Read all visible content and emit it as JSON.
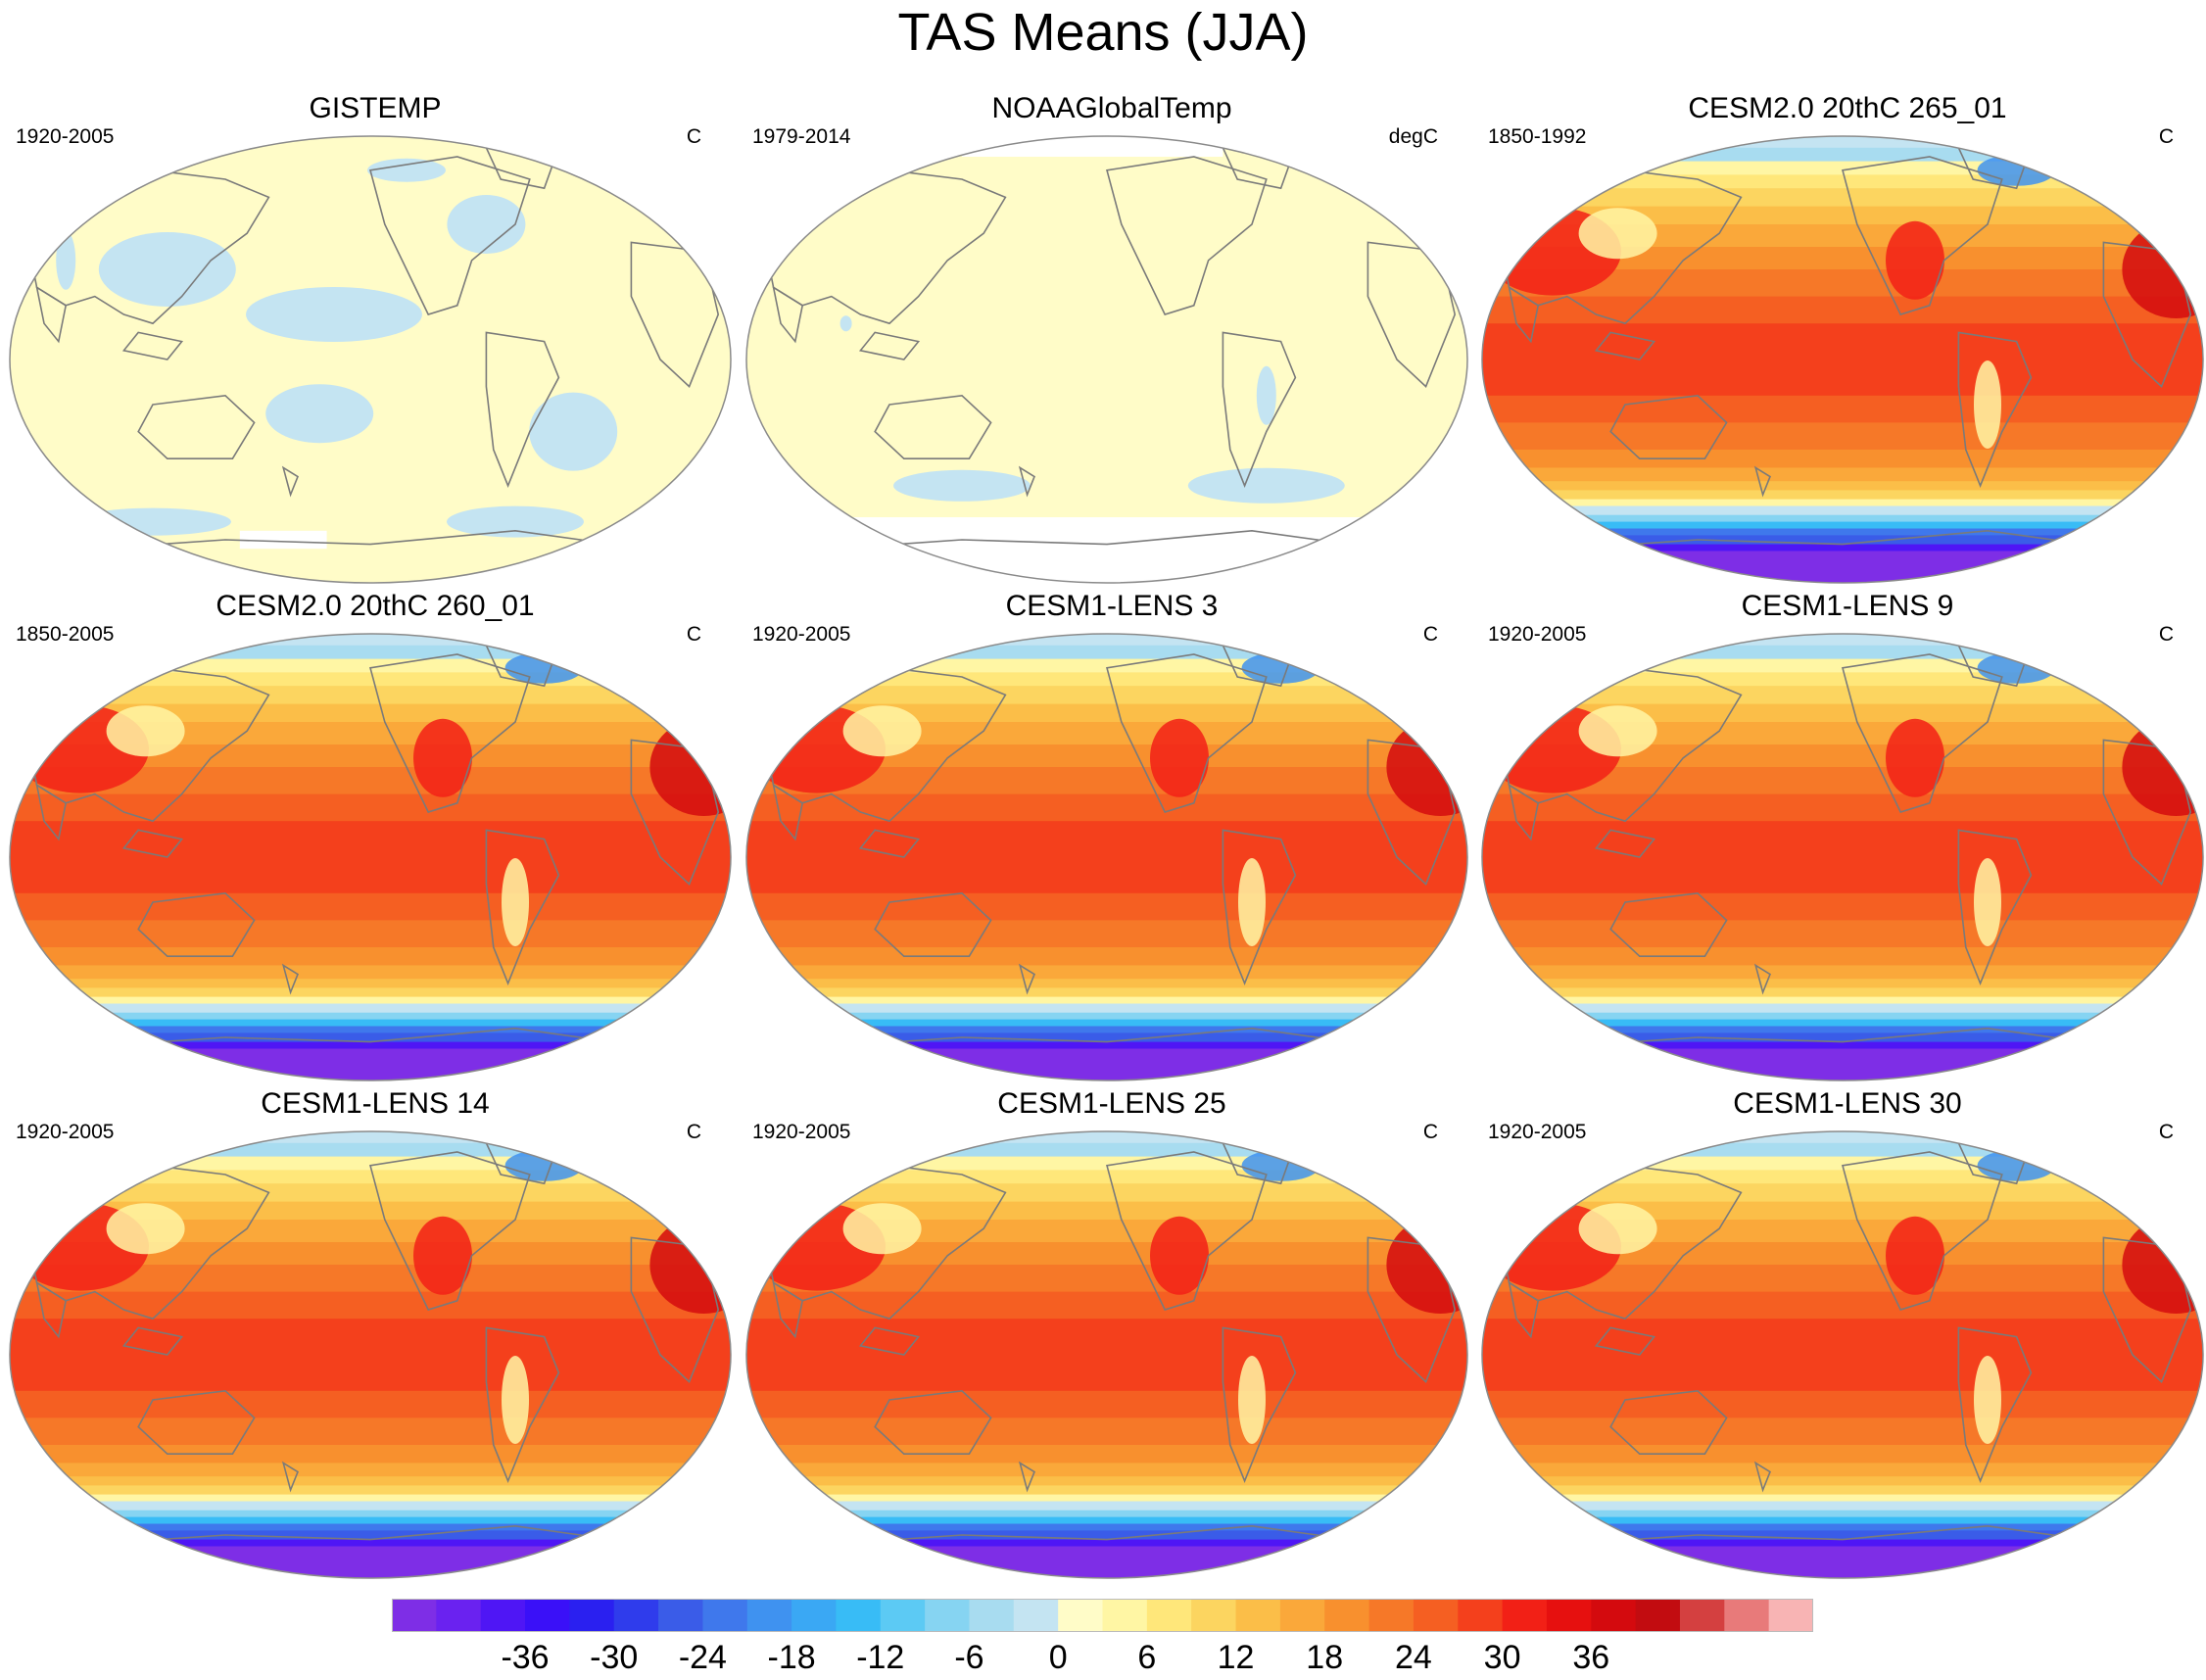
{
  "title": "TAS Means (JJA)",
  "panels": [
    {
      "title": "GISTEMP",
      "period": "1920-2005",
      "units": "C",
      "style": "obs-full"
    },
    {
      "title": "NOAAGlobalTemp",
      "period": "1979-2014",
      "units": "degC",
      "style": "obs-sparse"
    },
    {
      "title": "CESM2.0 20thC 265_01",
      "period": "1850-1992",
      "units": "C",
      "style": "model"
    },
    {
      "title": "CESM2.0 20thC 260_01",
      "period": "1850-2005",
      "units": "C",
      "style": "model"
    },
    {
      "title": "CESM1-LENS 3",
      "period": "1920-2005",
      "units": "C",
      "style": "model"
    },
    {
      "title": "CESM1-LENS 9",
      "period": "1920-2005",
      "units": "C",
      "style": "model"
    },
    {
      "title": "CESM1-LENS 14",
      "period": "1920-2005",
      "units": "C",
      "style": "model"
    },
    {
      "title": "CESM1-LENS 25",
      "period": "1920-2005",
      "units": "C",
      "style": "model"
    },
    {
      "title": "CESM1-LENS 30",
      "period": "1920-2005",
      "units": "C",
      "style": "model"
    }
  ],
  "colorbar": {
    "labels": [
      "-36",
      "-30",
      "-24",
      "-18",
      "-12",
      "-6",
      "0",
      "6",
      "12",
      "18",
      "24",
      "30",
      "36"
    ],
    "colors": [
      "#7e2ee6",
      "#6a22f0",
      "#4f16f5",
      "#3a10f8",
      "#2a20f0",
      "#2f3cec",
      "#3a5ce8",
      "#3f78ec",
      "#3f92f0",
      "#3aa8f4",
      "#38bcf6",
      "#5ccaf4",
      "#86d4f2",
      "#a8dcf0",
      "#c4e4f2",
      "#fffcc8",
      "#fff6a4",
      "#ffe77a",
      "#fcd560",
      "#fbbe48",
      "#faa83a",
      "#f8902e",
      "#f67828",
      "#f55f22",
      "#f4401c",
      "#f22016",
      "#e6100f",
      "#d40a0e",
      "#c20c10",
      "#d44040",
      "#e87a7a",
      "#f8b4b4"
    ]
  }
}
